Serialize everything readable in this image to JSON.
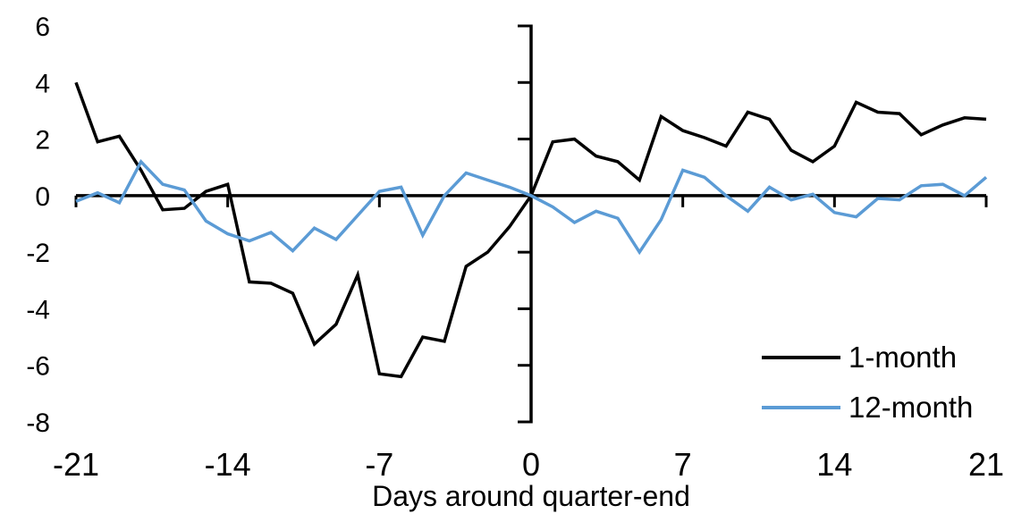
{
  "chart_data": {
    "type": "line",
    "title": "",
    "xlabel": "Days around quarter-end",
    "ylabel": "",
    "grid": false,
    "legend_position": "inside-right-bottom",
    "xlim": [
      -21,
      21
    ],
    "ylim": [
      -8,
      6
    ],
    "xticks": [
      -21,
      -14,
      -7,
      0,
      7,
      14,
      21
    ],
    "yticks": [
      6,
      4,
      2,
      0,
      -2,
      -4,
      -6,
      -8
    ],
    "axis_color": "#000000",
    "x": [
      -21,
      -20,
      -19,
      -18,
      -17,
      -16,
      -15,
      -14,
      -13,
      -12,
      -11,
      -10,
      -9,
      -8,
      -7,
      -6,
      -5,
      -4,
      -3,
      -2,
      -1,
      0,
      1,
      2,
      3,
      4,
      5,
      6,
      7,
      8,
      9,
      10,
      11,
      12,
      13,
      14,
      15,
      16,
      17,
      18,
      19,
      20,
      21
    ],
    "series": [
      {
        "name": "1-month",
        "color": "#000000",
        "values": [
          4.0,
          1.9,
          2.1,
          0.9,
          -0.5,
          -0.45,
          0.15,
          0.4,
          -3.05,
          -3.1,
          -3.45,
          -5.25,
          -4.55,
          -2.8,
          -6.3,
          -6.4,
          -5.0,
          -5.15,
          -2.5,
          -2.0,
          -1.1,
          0.0,
          1.9,
          2.0,
          1.4,
          1.2,
          0.55,
          2.8,
          2.3,
          2.05,
          1.75,
          2.95,
          2.7,
          1.6,
          1.2,
          1.75,
          3.3,
          2.95,
          2.9,
          2.15,
          2.5,
          2.75,
          2.7
        ]
      },
      {
        "name": "12-month",
        "color": "#5B9BD5",
        "values": [
          -0.2,
          0.1,
          -0.25,
          1.2,
          0.4,
          0.2,
          -0.9,
          -1.35,
          -1.6,
          -1.3,
          -1.95,
          -1.15,
          -1.55,
          -0.7,
          0.15,
          0.3,
          -1.4,
          0.0,
          0.8,
          0.55,
          0.3,
          0.0,
          -0.4,
          -0.95,
          -0.55,
          -0.8,
          -2.0,
          -0.85,
          0.9,
          0.65,
          0.0,
          -0.55,
          0.3,
          -0.15,
          0.05,
          -0.6,
          -0.75,
          -0.1,
          -0.15,
          0.35,
          0.4,
          0.0,
          0.65
        ]
      }
    ]
  }
}
